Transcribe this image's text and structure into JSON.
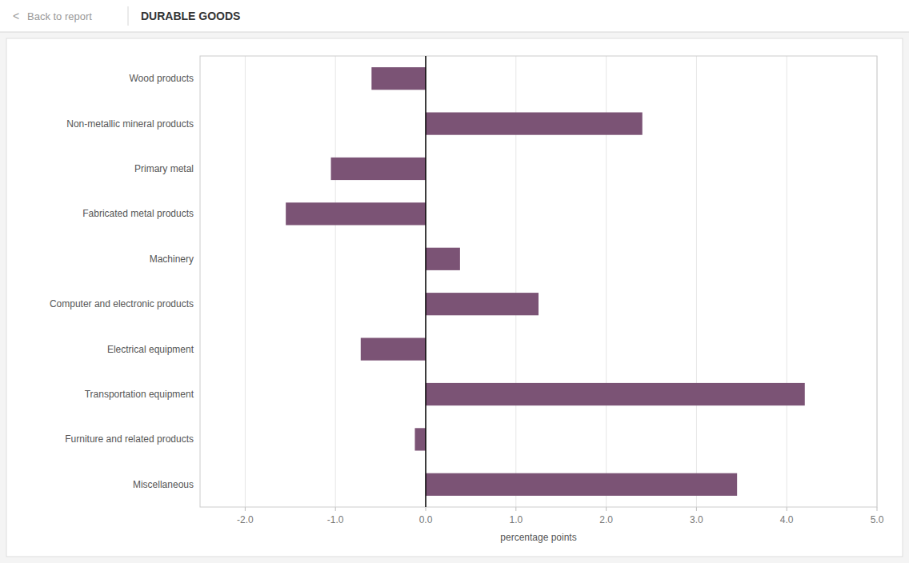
{
  "chart_data": {
    "type": "bar",
    "orientation": "horizontal",
    "title": "DURABLE GOODS",
    "annotations": [
      "<",
      "Back to report"
    ],
    "xlabel": "percentage points",
    "categories": [
      "Wood products",
      "Non-metallic mineral products",
      "Primary metal",
      "Fabricated metal products",
      "Machinery",
      "Computer and electronic products",
      "Electrical equipment",
      "Transportation equipment",
      "Furniture and related products",
      "Miscellaneous"
    ],
    "values": [
      -0.6,
      2.4,
      -1.05,
      -1.55,
      0.38,
      1.25,
      -0.72,
      4.2,
      -0.12,
      3.45
    ],
    "color": "#7B5375",
    "xlim": [
      -2.5,
      5.0
    ],
    "xticks": [
      {
        "value": -2.0,
        "label": "-2.0"
      },
      {
        "value": -1.0,
        "label": "-1.0"
      },
      {
        "value": 0.0,
        "label": "0.0"
      },
      {
        "value": 1.0,
        "label": "1.0"
      },
      {
        "value": 2.0,
        "label": "2.0"
      },
      {
        "value": 3.0,
        "label": "3.0"
      },
      {
        "value": 4.0,
        "label": "4.0"
      },
      {
        "value": 5.0,
        "label": "5.0"
      }
    ],
    "grid": true
  }
}
